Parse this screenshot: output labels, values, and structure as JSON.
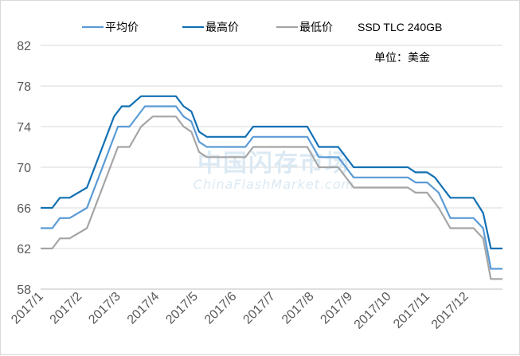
{
  "chart_data": {
    "type": "line",
    "title": "SSD TLC 240GB",
    "unit_label": "单位：美金",
    "watermark": {
      "cn": "中国闪存市场",
      "en": "ChinaFlashMarket.com"
    },
    "x_labels": [
      "2017/1",
      "2017/2",
      "2017/3",
      "2017/4",
      "2017/5",
      "2017/6",
      "2017/7",
      "2017/8",
      "2017/9",
      "2017/10",
      "2017/11",
      "2017/12"
    ],
    "y_ticks": [
      58,
      62,
      66,
      70,
      74,
      78,
      82
    ],
    "ylim": [
      58,
      82
    ],
    "x_range": [
      1.0,
      12.95
    ],
    "grid": "horizontal",
    "legend_position": "top",
    "series": [
      {
        "name": "平均价",
        "color": "#5b9bd5",
        "points": [
          [
            1.0,
            64
          ],
          [
            1.3,
            64
          ],
          [
            1.5,
            65
          ],
          [
            1.75,
            65
          ],
          [
            2.2,
            66
          ],
          [
            2.6,
            70
          ],
          [
            3.0,
            74
          ],
          [
            3.3,
            74
          ],
          [
            3.7,
            76
          ],
          [
            4.0,
            76
          ],
          [
            4.5,
            76
          ],
          [
            4.7,
            75
          ],
          [
            4.9,
            74.5
          ],
          [
            5.1,
            72.5
          ],
          [
            5.3,
            72
          ],
          [
            5.6,
            72
          ],
          [
            6.0,
            72
          ],
          [
            6.3,
            72
          ],
          [
            6.5,
            73
          ],
          [
            7.0,
            73
          ],
          [
            7.5,
            73
          ],
          [
            7.9,
            73
          ],
          [
            8.2,
            71
          ],
          [
            8.5,
            71
          ],
          [
            8.7,
            71
          ],
          [
            9.1,
            69
          ],
          [
            9.5,
            69
          ],
          [
            10.0,
            69
          ],
          [
            10.5,
            69
          ],
          [
            10.7,
            68.5
          ],
          [
            11.0,
            68.5
          ],
          [
            11.3,
            67.5
          ],
          [
            11.6,
            65
          ],
          [
            12.0,
            65
          ],
          [
            12.2,
            65
          ],
          [
            12.45,
            64
          ],
          [
            12.65,
            60
          ],
          [
            12.95,
            60
          ]
        ]
      },
      {
        "name": "最高价",
        "color": "#1170b3",
        "points": [
          [
            1.0,
            66
          ],
          [
            1.3,
            66
          ],
          [
            1.5,
            67
          ],
          [
            1.75,
            67
          ],
          [
            2.2,
            68
          ],
          [
            2.6,
            72
          ],
          [
            2.9,
            75
          ],
          [
            3.1,
            76
          ],
          [
            3.3,
            76
          ],
          [
            3.6,
            77
          ],
          [
            4.0,
            77
          ],
          [
            4.5,
            77
          ],
          [
            4.7,
            76
          ],
          [
            4.9,
            75.5
          ],
          [
            5.1,
            73.5
          ],
          [
            5.3,
            73
          ],
          [
            5.6,
            73
          ],
          [
            6.0,
            73
          ],
          [
            6.3,
            73
          ],
          [
            6.5,
            74
          ],
          [
            7.0,
            74
          ],
          [
            7.5,
            74
          ],
          [
            7.9,
            74
          ],
          [
            8.2,
            72
          ],
          [
            8.5,
            72
          ],
          [
            8.7,
            72
          ],
          [
            9.1,
            70
          ],
          [
            9.5,
            70
          ],
          [
            10.0,
            70
          ],
          [
            10.5,
            70
          ],
          [
            10.7,
            69.5
          ],
          [
            11.0,
            69.5
          ],
          [
            11.2,
            69
          ],
          [
            11.4,
            68
          ],
          [
            11.6,
            67
          ],
          [
            12.0,
            67
          ],
          [
            12.2,
            67
          ],
          [
            12.45,
            65.5
          ],
          [
            12.65,
            62
          ],
          [
            12.95,
            62
          ]
        ]
      },
      {
        "name": "最低价",
        "color": "#a5a5a5",
        "points": [
          [
            1.0,
            62
          ],
          [
            1.3,
            62
          ],
          [
            1.5,
            63
          ],
          [
            1.75,
            63
          ],
          [
            2.2,
            64
          ],
          [
            2.6,
            68
          ],
          [
            3.0,
            72
          ],
          [
            3.3,
            72
          ],
          [
            3.6,
            74
          ],
          [
            3.9,
            75
          ],
          [
            4.0,
            75
          ],
          [
            4.5,
            75
          ],
          [
            4.7,
            74
          ],
          [
            4.9,
            73.5
          ],
          [
            5.1,
            71.5
          ],
          [
            5.3,
            71
          ],
          [
            5.6,
            71
          ],
          [
            6.0,
            71
          ],
          [
            6.3,
            71
          ],
          [
            6.5,
            72
          ],
          [
            7.0,
            72
          ],
          [
            7.5,
            72
          ],
          [
            7.9,
            72
          ],
          [
            8.2,
            70
          ],
          [
            8.5,
            70
          ],
          [
            8.7,
            70
          ],
          [
            9.1,
            68
          ],
          [
            9.5,
            68
          ],
          [
            10.0,
            68
          ],
          [
            10.5,
            68
          ],
          [
            10.7,
            67.5
          ],
          [
            11.0,
            67.5
          ],
          [
            11.3,
            66
          ],
          [
            11.6,
            64
          ],
          [
            12.0,
            64
          ],
          [
            12.2,
            64
          ],
          [
            12.45,
            63
          ],
          [
            12.65,
            59
          ],
          [
            12.95,
            59
          ]
        ]
      }
    ]
  }
}
